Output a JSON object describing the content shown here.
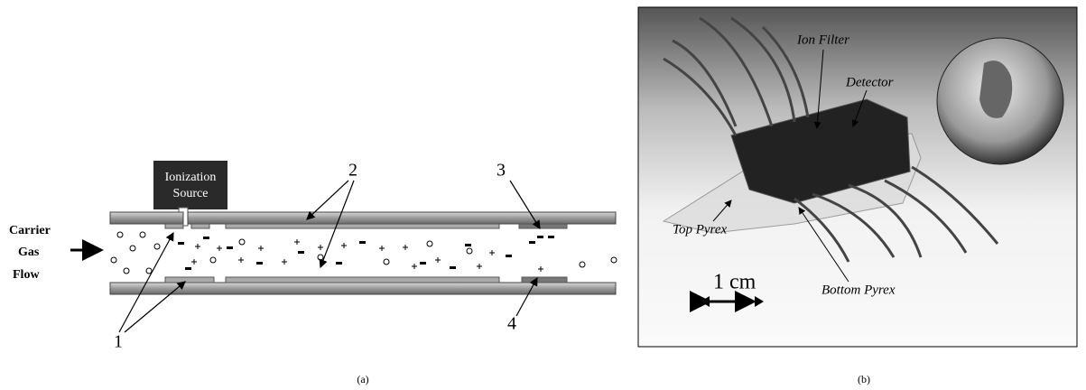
{
  "panel_a": {
    "source_label": [
      "Ionization",
      "Source"
    ],
    "flow_label": [
      "Carrier",
      "Gas",
      "Flow"
    ],
    "callouts": [
      "1",
      "2",
      "3",
      "4"
    ],
    "caption": "(a)"
  },
  "panel_b": {
    "labels": [
      "Ion Filter",
      "Detector",
      "Top Pyrex",
      "Bottom Pyrex"
    ],
    "scale": "1 cm",
    "caption": "(b)"
  }
}
